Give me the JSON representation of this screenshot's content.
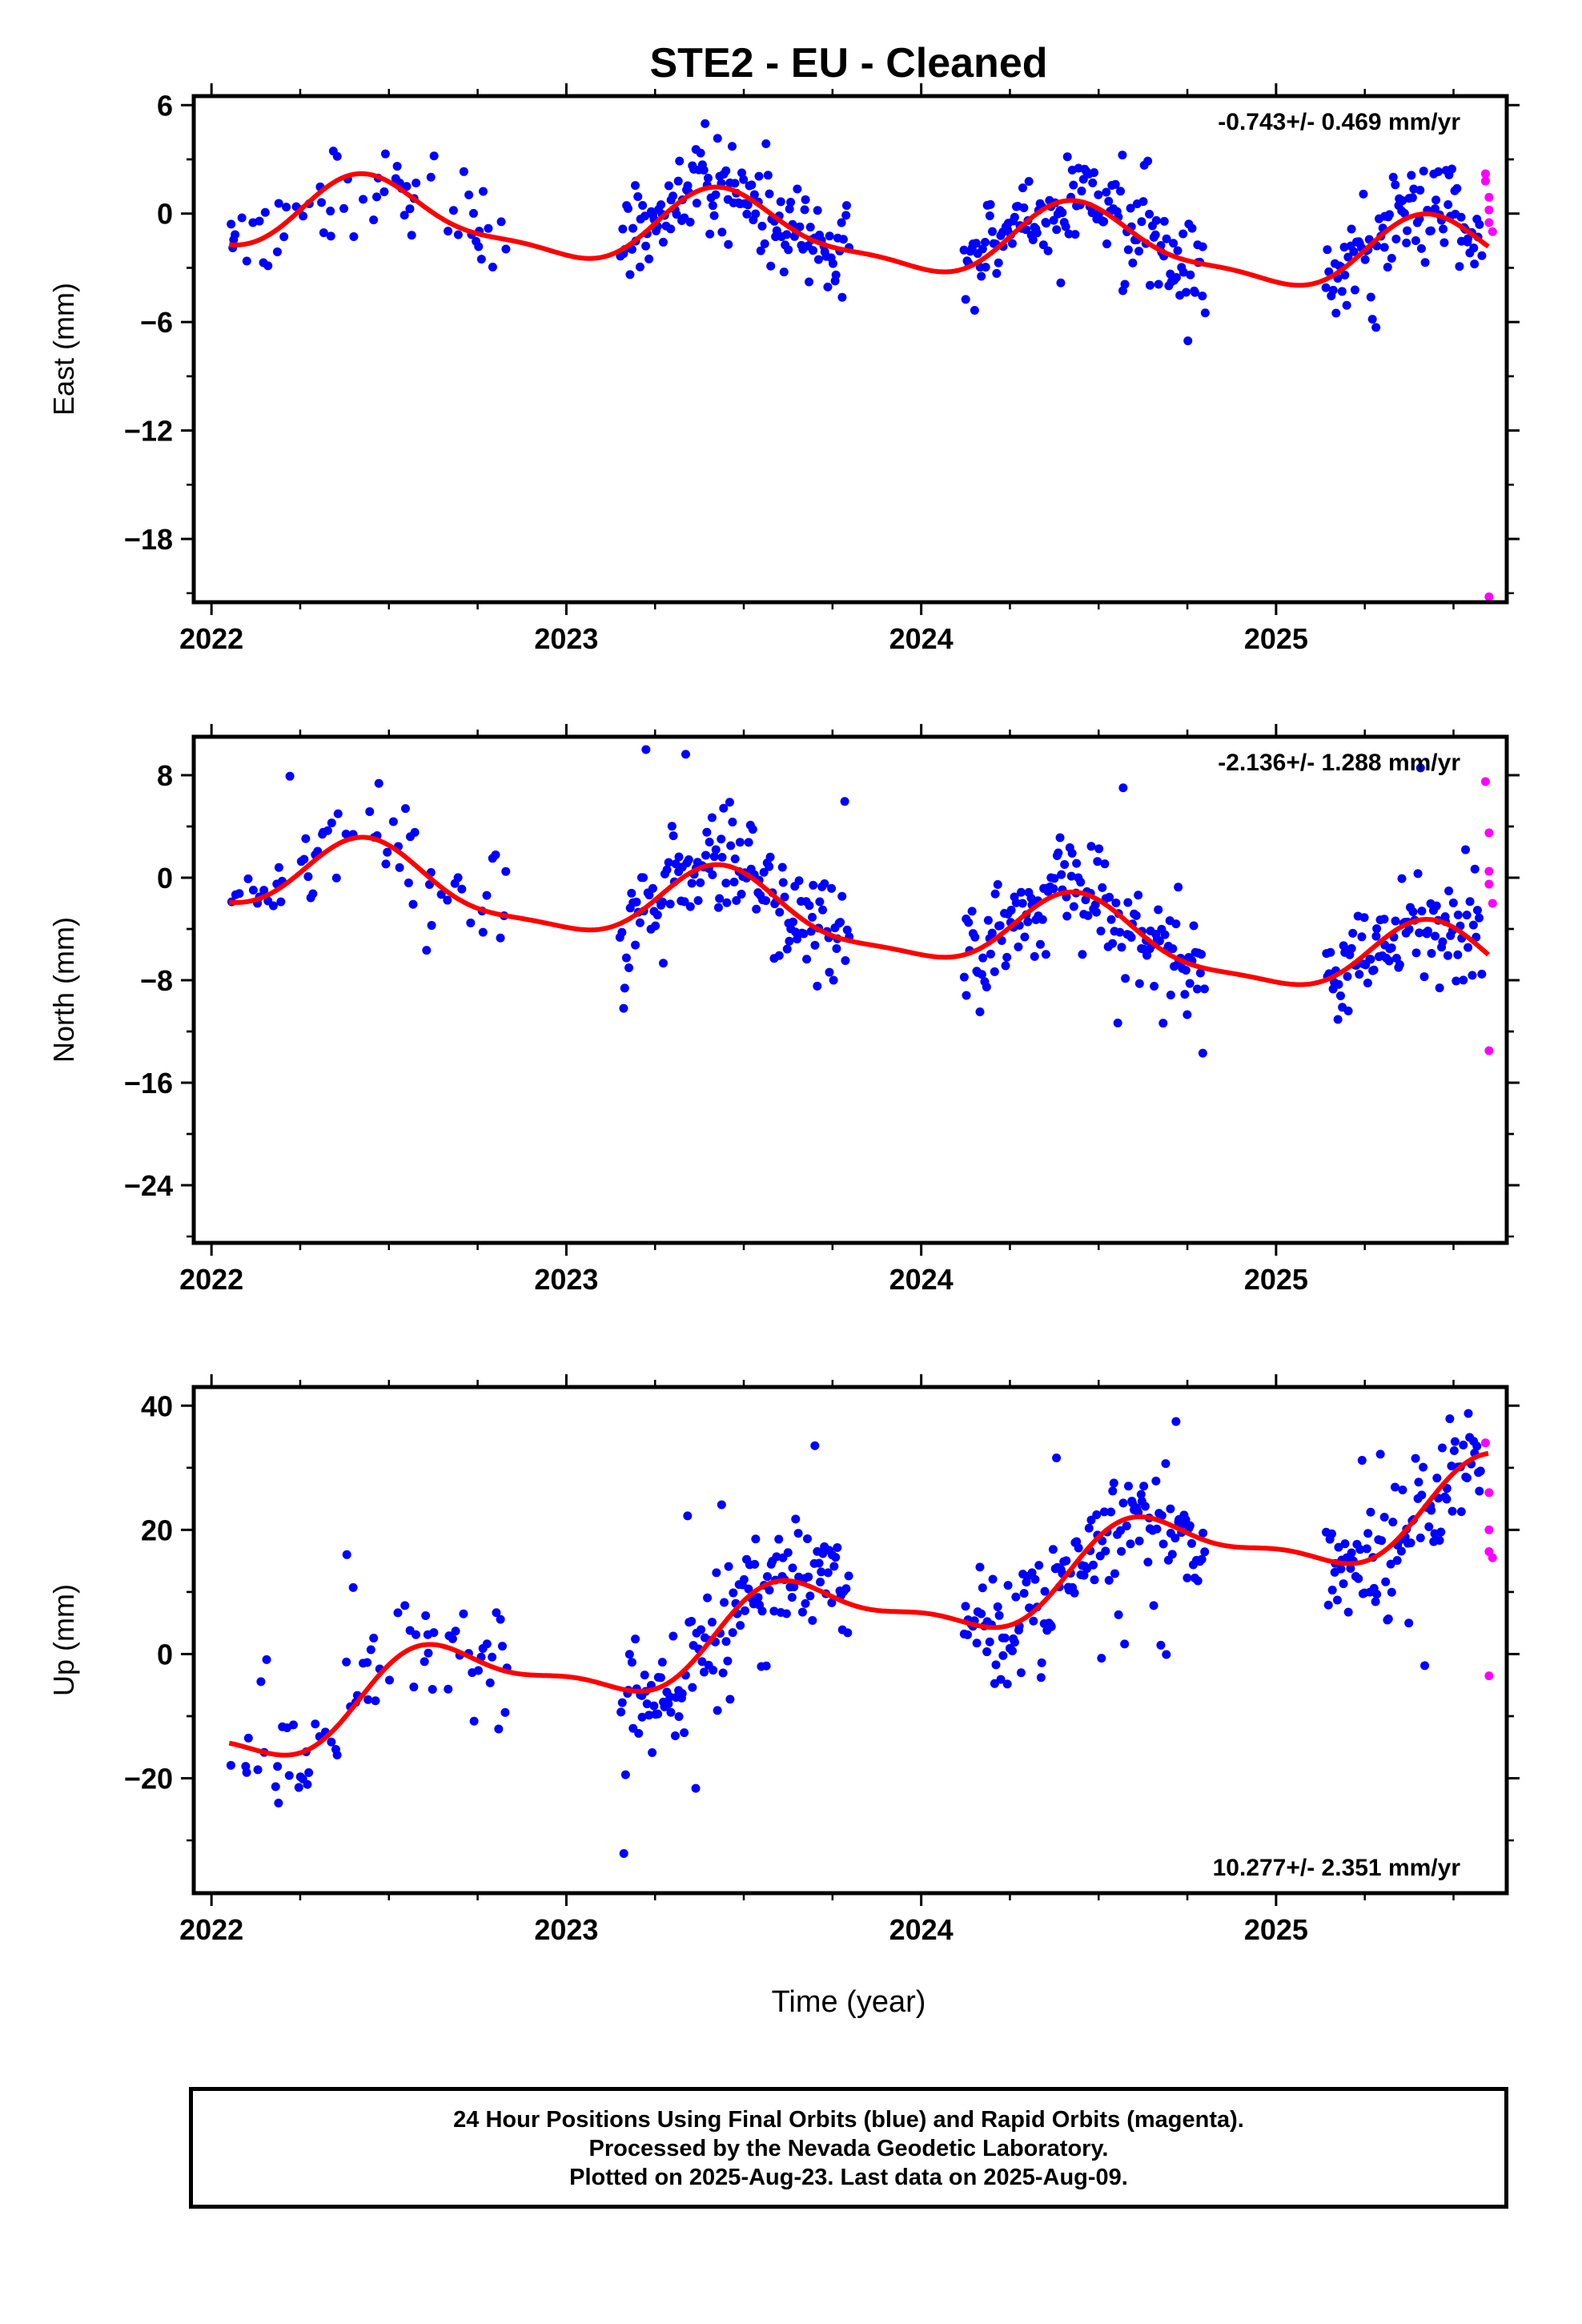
{
  "title": "STE2  - EU - Cleaned",
  "xlabel": "Time (year)",
  "colors": {
    "final": "#0000ff",
    "rapid": "#ff00ff",
    "model": "#ff0000",
    "frame": "#000000"
  },
  "footer": {
    "line1": "24 Hour Positions Using Final Orbits (blue) and Rapid Orbits (magenta).",
    "line2": "Processed by the Nevada Geodetic Laboratory.",
    "line3": "Plotted on 2025-Aug-23. Last data on 2025-Aug-09."
  },
  "chart_data": [
    {
      "type": "scatter",
      "component": "east",
      "ylabel": "East (mm)",
      "xlim": [
        2021.95,
        2025.65
      ],
      "ylim": [
        -21.5,
        6.5
      ],
      "xticks": [
        2022,
        2023,
        2024,
        2025
      ],
      "yticks": [
        6,
        0,
        -6,
        -12,
        -18
      ],
      "rate_label": "-0.743+/- 0.469 mm/yr",
      "rate_position": "top-right",
      "model": {
        "base": 0.1,
        "trend": -0.743,
        "annual_amp": 1.9,
        "annual_peak": 2022.46,
        "semi_amp": 0.6,
        "semi_peak": 2022.4
      },
      "final_scatter": 1.2,
      "outlier_range": [
        -7.5,
        5.8
      ],
      "gaps": [
        [
          2022.84,
          2023.15
        ],
        [
          2023.8,
          2024.12
        ],
        [
          2024.8,
          2025.14
        ]
      ],
      "rapid_points": [
        [
          2025.59,
          2.2
        ],
        [
          2025.59,
          1.8
        ],
        [
          2025.6,
          0.9
        ],
        [
          2025.6,
          0.2
        ],
        [
          2025.6,
          -0.5
        ],
        [
          2025.61,
          -1.0
        ],
        [
          2025.6,
          -21.2
        ]
      ]
    },
    {
      "type": "scatter",
      "component": "north",
      "ylabel": "North (mm)",
      "xlim": [
        2021.95,
        2025.65
      ],
      "ylim": [
        -28.5,
        11
      ],
      "xticks": [
        2022,
        2023,
        2024,
        2025
      ],
      "yticks": [
        8,
        0,
        -8,
        -16,
        -24
      ],
      "rate_label": "-2.136+/- 1.288 mm/yr",
      "rate_position": "top-right",
      "model": {
        "base": 0.5,
        "trend": -2.136,
        "annual_amp": 2.8,
        "annual_peak": 2022.45,
        "semi_amp": 0.8,
        "semi_peak": 2022.42
      },
      "final_scatter": 2.0,
      "outlier_range": [
        -27.5,
        10
      ],
      "gaps": [
        [
          2022.84,
          2023.15
        ],
        [
          2023.8,
          2024.12
        ],
        [
          2024.8,
          2025.14
        ]
      ],
      "rapid_points": [
        [
          2025.59,
          7.5
        ],
        [
          2025.6,
          3.5
        ],
        [
          2025.6,
          0.5
        ],
        [
          2025.6,
          -0.5
        ],
        [
          2025.61,
          -2.0
        ],
        [
          2025.6,
          -13.5
        ]
      ]
    },
    {
      "type": "scatter",
      "component": "up",
      "ylabel": "Up (mm)",
      "xlim": [
        2021.95,
        2025.65
      ],
      "ylim": [
        -38.5,
        43
      ],
      "xticks": [
        2022,
        2023,
        2024,
        2025
      ],
      "yticks": [
        40,
        20,
        0,
        -20
      ],
      "rate_label": "10.277+/- 2.351 mm/yr",
      "rate_position": "bottom-right",
      "model": {
        "base": -12.0,
        "trend": 10.277,
        "annual_amp": 6.0,
        "annual_peak": 2022.65,
        "semi_amp": 2.0,
        "semi_peak": 2022.55
      },
      "final_scatter": 4.5,
      "outlier_range": [
        -36,
        40
      ],
      "gaps": [
        [
          2022.84,
          2023.15
        ],
        [
          2023.8,
          2024.12
        ],
        [
          2024.8,
          2025.14
        ]
      ],
      "rapid_points": [
        [
          2025.59,
          34.0
        ],
        [
          2025.6,
          26.0
        ],
        [
          2025.6,
          20.0
        ],
        [
          2025.6,
          16.5
        ],
        [
          2025.61,
          15.5
        ],
        [
          2025.6,
          -3.5
        ]
      ]
    }
  ]
}
